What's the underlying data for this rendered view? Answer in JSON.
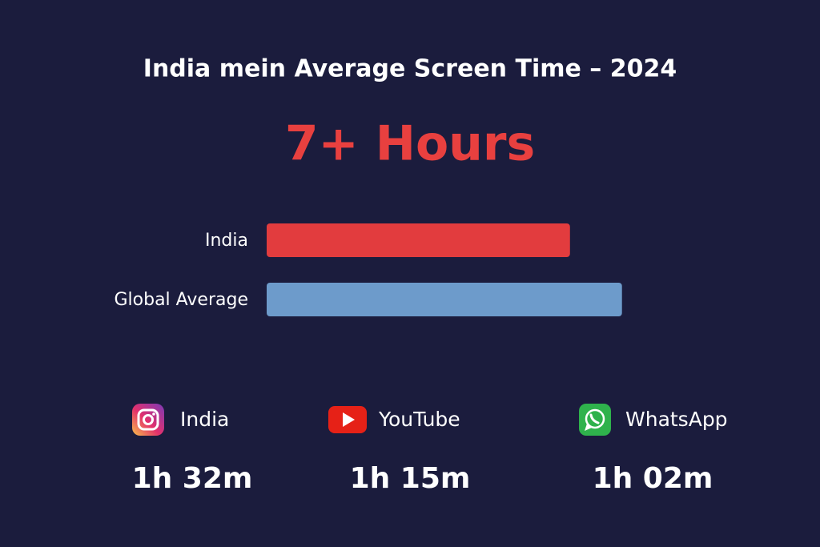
{
  "title": "India mein Average Screen Time – 2024",
  "headline": "7+ Hours",
  "chart_data": {
    "type": "bar",
    "orientation": "horizontal",
    "categories": [
      "India",
      "Global Average"
    ],
    "values": [
      7,
      8.2
    ],
    "colors": [
      "#e23c3e",
      "#6d9bcb"
    ],
    "xlim": [
      0,
      9
    ]
  },
  "apps": [
    {
      "name": "India",
      "time": "1h 32m"
    },
    {
      "name": "YouTube",
      "time": "1h 15m"
    },
    {
      "name": "WhatsApp",
      "time": "1h 02m"
    }
  ]
}
